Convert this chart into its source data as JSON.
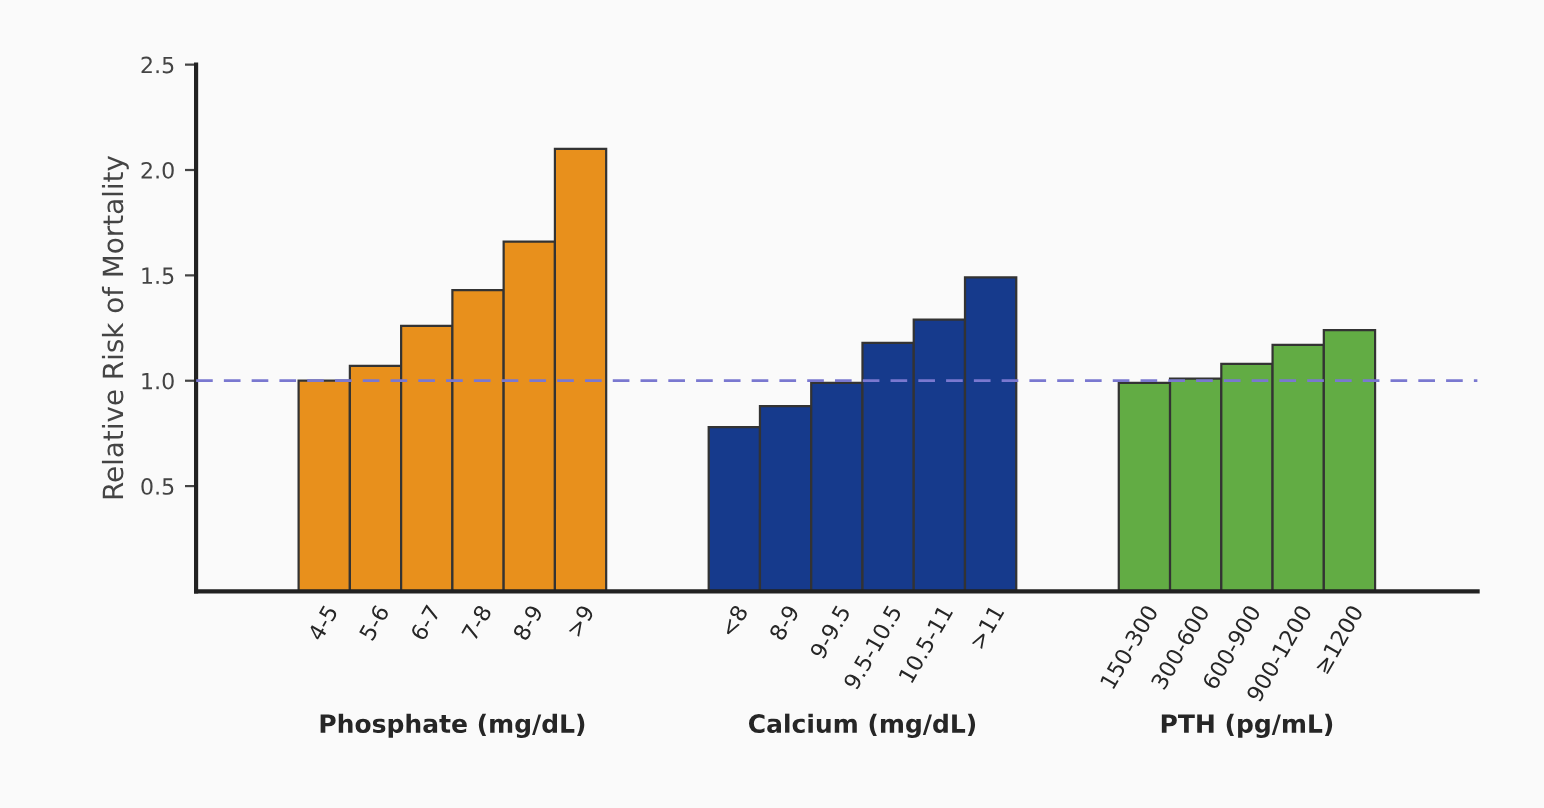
{
  "chart_data": {
    "type": "bar",
    "ylabel": "Relative Risk of Mortality",
    "categories": [
      "4-5",
      "5-6",
      "6-7",
      "7-8",
      "8-9",
      ">9",
      null,
      null,
      "<8",
      "8-9",
      "9-9.5",
      "9.5-10.5",
      "10.5-11",
      ">11",
      null,
      null,
      "150-300",
      "300-600",
      "600-900",
      "900-1200",
      "≥1200"
    ],
    "series": [
      {
        "color": "#e8901c",
        "values": [
          1.0,
          1.07,
          1.26,
          1.43,
          1.66,
          2.1,
          null,
          null,
          null,
          null,
          null,
          null,
          null,
          null,
          null,
          null,
          null,
          null,
          null,
          null,
          null
        ]
      },
      {
        "color": "#163a8c",
        "values": [
          null,
          null,
          null,
          null,
          null,
          null,
          null,
          null,
          0.78,
          0.88,
          0.99,
          1.18,
          1.29,
          1.49,
          null,
          null,
          null,
          null,
          null,
          null,
          null
        ]
      },
      {
        "color": "#62ac44",
        "values": [
          null,
          null,
          null,
          null,
          null,
          null,
          null,
          null,
          null,
          null,
          null,
          null,
          null,
          null,
          null,
          null,
          0.99,
          1.01,
          1.08,
          1.17,
          1.24
        ]
      }
    ],
    "ylim": [
      0,
      2.5
    ],
    "yticks": [
      {
        "value": 0.5,
        "label": "0.5"
      },
      {
        "value": 1.0,
        "label": "1.0"
      },
      {
        "value": 1.5,
        "label": "1.5"
      },
      {
        "value": 2.0,
        "label": "2.0"
      },
      {
        "value": 2.5,
        "label": "2.5"
      }
    ],
    "ref_lines": [
      {
        "axis": "y",
        "value": 1.0,
        "color": "#7a78d0",
        "line_style": "dashed"
      }
    ],
    "annotations": [
      "Phosphate (mg/dL)",
      "Calcium (mg/dL)",
      "PTH (pg/mL)"
    ],
    "grid": false,
    "legend": false
  }
}
